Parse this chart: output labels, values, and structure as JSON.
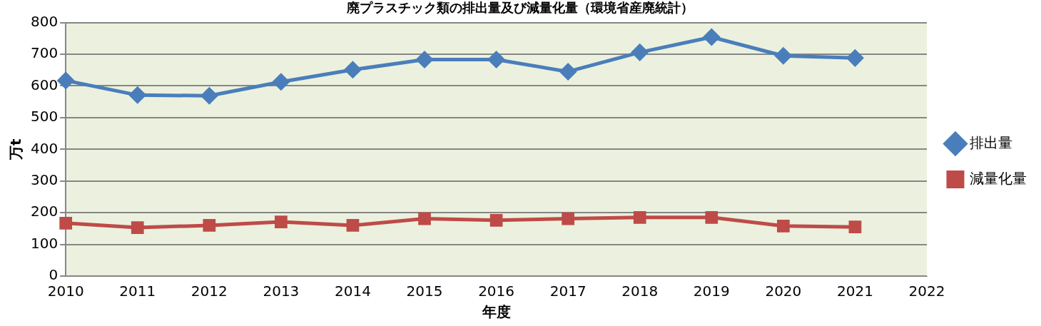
{
  "chart_data": {
    "type": "line",
    "title": "廃プラスチック類の排出量及び減量化量（環境省産廃統計）",
    "xlabel": "年度",
    "ylabel": "万t",
    "categories": [
      "2010",
      "2011",
      "2012",
      "2013",
      "2014",
      "2015",
      "2016",
      "2017",
      "2018",
      "2019",
      "2020",
      "2021",
      "2022"
    ],
    "series": [
      {
        "name": "排出量",
        "color": "#4a7ebb",
        "marker": "diamond",
        "values": [
          617,
          571,
          569,
          613,
          651,
          683,
          683,
          645,
          706,
          754,
          695,
          688,
          null
        ]
      },
      {
        "name": "減量化量",
        "color": "#be4b48",
        "marker": "square",
        "values": [
          167,
          153,
          160,
          171,
          160,
          181,
          176,
          181,
          185,
          185,
          158,
          155,
          null
        ]
      }
    ],
    "ylim": [
      0,
      800
    ],
    "yticks": [
      0,
      100,
      200,
      300,
      400,
      500,
      600,
      700,
      800
    ],
    "grid": "y",
    "legend": "right",
    "line_style": "solid"
  }
}
